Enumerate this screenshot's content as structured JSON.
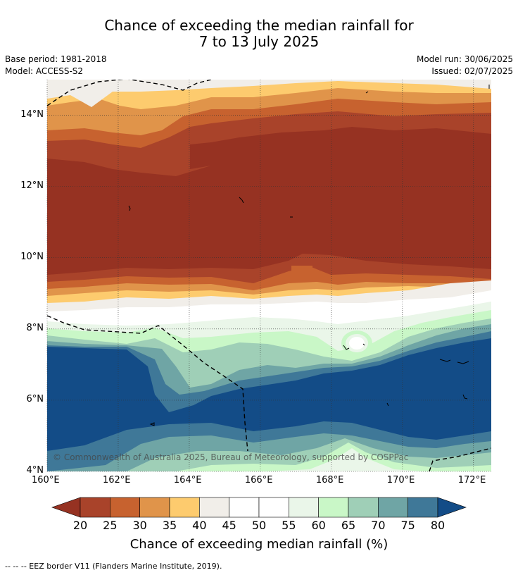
{
  "title_line1": "Chance of exceeding the median rainfall for",
  "title_line2": "7 to 13 July 2025",
  "meta": {
    "base_period": "Base period: 1981-2018",
    "model": "Model: ACCESS-S2",
    "model_run": "Model run: 30/06/2025",
    "issued": "Issued: 02/07/2025"
  },
  "map": {
    "lat_labels": [
      "14°N",
      "12°N",
      "10°N",
      "8°N",
      "6°N",
      "4°N"
    ],
    "lon_labels": [
      "160°E",
      "162°E",
      "164°E",
      "166°E",
      "168°E",
      "170°E",
      "172°E"
    ],
    "lat_range": [
      4,
      15
    ],
    "lon_range": [
      160,
      172.5
    ],
    "copyright": "© Commonwealth of Australia 2025, Bureau of Meteorology, supported by COSPPac"
  },
  "colorbar": {
    "ticks": [
      "20",
      "25",
      "30",
      "35",
      "40",
      "45",
      "50",
      "55",
      "60",
      "65",
      "70",
      "75",
      "80"
    ],
    "colors": [
      "#a9432a",
      "#c7622f",
      "#e0944a",
      "#fdcb6e",
      "#f1eee9",
      "#ffffff",
      "#ffffff",
      "#eaf6e9",
      "#c9f7c7",
      "#9fcfb7",
      "#6fa5a5",
      "#3f7898"
    ],
    "under_color": "#963222",
    "over_color": "#134c87",
    "label": "Chance of exceeding median rainfall (%)"
  },
  "footnote": "--  --  -- EEZ border V11 (Flanders Marine Institute, 2019)."
}
